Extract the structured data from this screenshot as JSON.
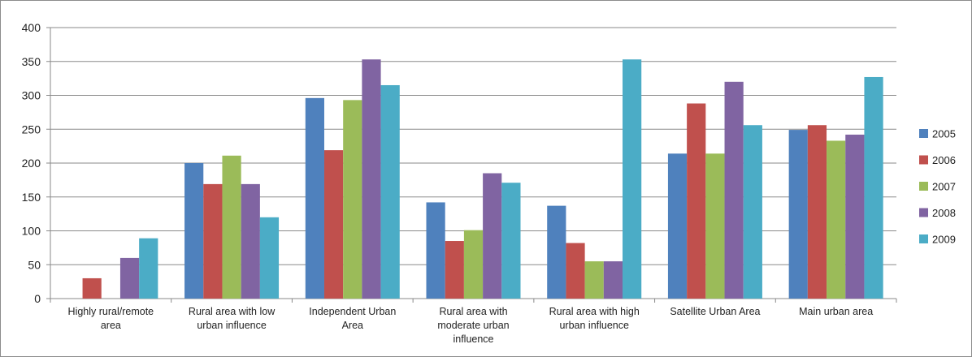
{
  "chart_data": {
    "type": "bar",
    "title": "",
    "xlabel": "",
    "ylabel": "",
    "ylim": [
      0,
      400
    ],
    "yticks": [
      0,
      50,
      100,
      150,
      200,
      250,
      300,
      350,
      400
    ],
    "grid": true,
    "legend_position": "right",
    "categories": [
      [
        "Highly rural/remote",
        "area"
      ],
      [
        "Rural area with low",
        "urban influence"
      ],
      [
        "Independent Urban",
        "Area"
      ],
      [
        "Rural area with",
        "moderate urban",
        "influence"
      ],
      [
        "Rural area with high",
        "urban influence"
      ],
      [
        "Satellite Urban Area"
      ],
      [
        "Main urban area"
      ]
    ],
    "series": [
      {
        "name": "2005",
        "color": "#4F81BD",
        "values": [
          0,
          200,
          296,
          142,
          137,
          214,
          249
        ]
      },
      {
        "name": "2006",
        "color": "#C0504D",
        "values": [
          30,
          169,
          219,
          85,
          82,
          288,
          256
        ]
      },
      {
        "name": "2007",
        "color": "#9BBB59",
        "values": [
          0,
          211,
          293,
          101,
          55,
          214,
          233
        ]
      },
      {
        "name": "2008",
        "color": "#8064A2",
        "values": [
          60,
          169,
          353,
          185,
          55,
          320,
          242
        ]
      },
      {
        "name": "2009",
        "color": "#4BACC6",
        "values": [
          89,
          120,
          315,
          171,
          353,
          256,
          327
        ]
      }
    ]
  }
}
